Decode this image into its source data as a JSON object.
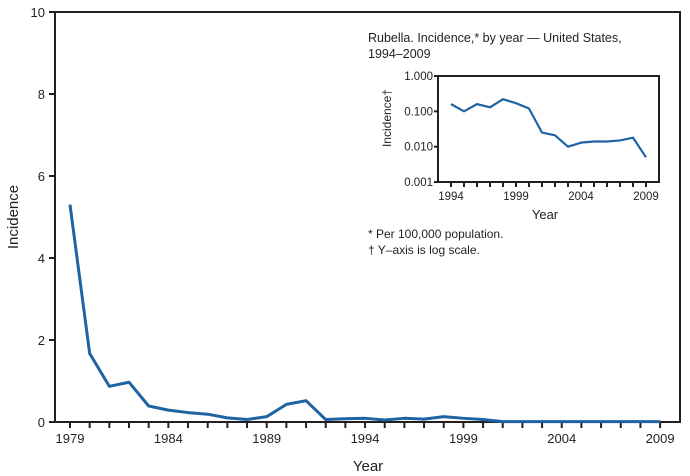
{
  "chart_data": [
    {
      "type": "line",
      "xlabel": "Year",
      "ylabel": "Incidence",
      "xlim": [
        1979,
        2009
      ],
      "ylim": [
        0,
        10
      ],
      "xticks": [
        "1979",
        "1984",
        "1989",
        "1994",
        "1999",
        "2004",
        "2009"
      ],
      "yticks": [
        "0",
        "2",
        "4",
        "6",
        "8",
        "10"
      ],
      "grid": false,
      "line_color": "#1f63a3",
      "x": [
        1979,
        1980,
        1981,
        1982,
        1983,
        1984,
        1985,
        1986,
        1987,
        1988,
        1989,
        1990,
        1991,
        1992,
        1993,
        1994,
        1995,
        1996,
        1997,
        1998,
        1999,
        2000,
        2001,
        2002,
        2003,
        2004,
        2005,
        2006,
        2007,
        2008,
        2009
      ],
      "y": [
        5.3,
        1.67,
        0.87,
        0.97,
        0.39,
        0.29,
        0.23,
        0.19,
        0.1,
        0.06,
        0.13,
        0.43,
        0.52,
        0.06,
        0.08,
        0.09,
        0.05,
        0.09,
        0.07,
        0.13,
        0.09,
        0.06,
        0.01,
        0.01,
        0.01,
        0.01,
        0.01,
        0.01,
        0.01,
        0.01,
        0.01
      ]
    },
    {
      "type": "line",
      "title": "Rubella. Incidence,* by year — United States, 1994–2009",
      "xlabel": "Year",
      "ylabel": "Incidence†",
      "yscale": "log",
      "xlim": [
        1994,
        2009
      ],
      "ylim": [
        0.001,
        1.0
      ],
      "xticks": [
        "1994",
        "1999",
        "2004",
        "2009"
      ],
      "yticks": [
        "1.000",
        "0.100",
        "0.010",
        "0.001"
      ],
      "grid": false,
      "line_color": "#1f63a3",
      "x": [
        1994,
        1995,
        1996,
        1997,
        1998,
        1999,
        2000,
        2001,
        2002,
        2003,
        2004,
        2005,
        2006,
        2007,
        2008,
        2009
      ],
      "y": [
        0.16,
        0.1,
        0.16,
        0.13,
        0.22,
        0.17,
        0.12,
        0.025,
        0.021,
        0.01,
        0.013,
        0.014,
        0.014,
        0.015,
        0.018,
        0.005
      ],
      "footnotes": [
        "* Per 100,000 population.",
        "† Y–axis is log scale."
      ]
    }
  ]
}
